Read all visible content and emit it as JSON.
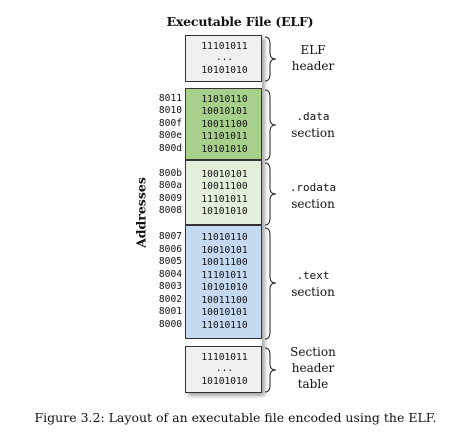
{
  "title": "Executable File (ELF)",
  "axis_label": "Addresses",
  "caption": "Figure 3.2: Layout of an executable file encoded using the ELF.",
  "colors": {
    "header": "#f0f0f0",
    "data": "#a8d08d",
    "rodata": "#e2efda",
    "text": "#c5d9f1",
    "border": "#333333"
  },
  "sections": {
    "elf_header": {
      "label_line1": "ELF",
      "label_line2": "header",
      "bits": [
        "11101011",
        "...",
        "10101010"
      ]
    },
    "data": {
      "label_line1": ".data",
      "label_line2": "section",
      "addresses": [
        "8011",
        "8010",
        "800f",
        "800e",
        "800d"
      ],
      "bits": [
        "11010110",
        "10010101",
        "10011100",
        "11101011",
        "10101010"
      ]
    },
    "rodata": {
      "label_line1": ".rodata",
      "label_line2": "section",
      "addresses": [
        "800b",
        "800a",
        "8009",
        "8008"
      ],
      "bits": [
        "10010101",
        "10011100",
        "11101011",
        "10101010"
      ]
    },
    "text": {
      "label_line1": ".text",
      "label_line2": "section",
      "addresses": [
        "8007",
        "8006",
        "8005",
        "8004",
        "8003",
        "8002",
        "8001",
        "8000"
      ],
      "bits": [
        "11010110",
        "10010101",
        "10011100",
        "11101011",
        "10101010",
        "10011100",
        "10010101",
        "11010110"
      ]
    },
    "section_header_table": {
      "label_line1": "Section",
      "label_line2": "header",
      "label_line3": "table",
      "bits": [
        "11101011",
        "...",
        "10101010"
      ]
    }
  }
}
